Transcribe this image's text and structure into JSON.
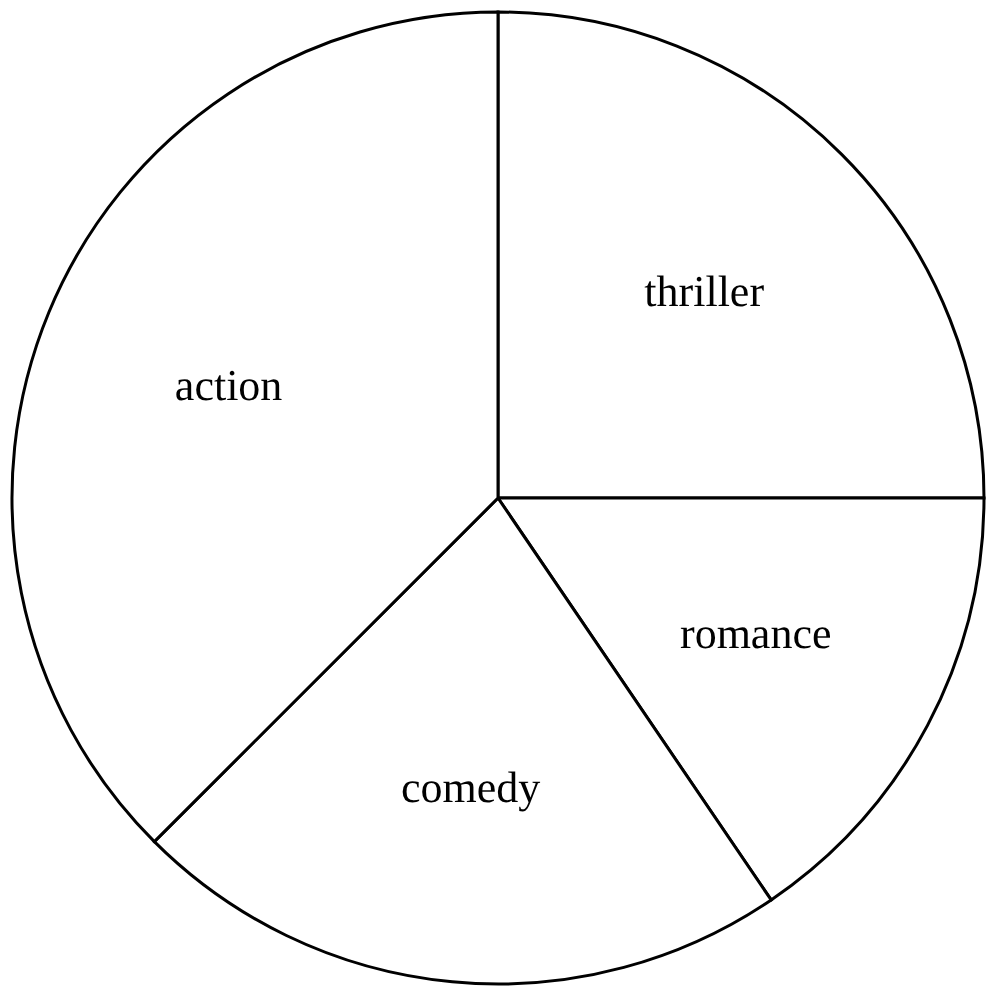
{
  "chart_data": {
    "type": "pie",
    "categories": [
      "thriller",
      "romance",
      "comedy",
      "action"
    ],
    "values": [
      25,
      15.5,
      22,
      37.5
    ],
    "colors": [
      "#ffffff",
      "#ffffff",
      "#ffffff",
      "#ffffff"
    ]
  }
}
